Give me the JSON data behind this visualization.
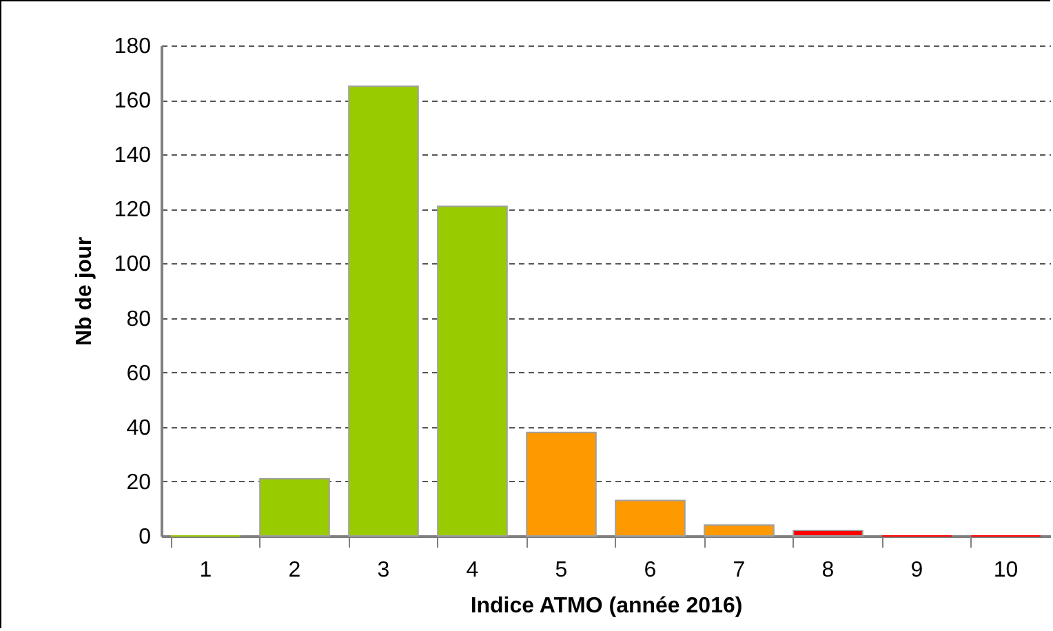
{
  "chart_data": {
    "type": "bar",
    "xlabel": "Indice ATMO (année 2016)",
    "ylabel": "Nb de jour",
    "categories": [
      "1",
      "2",
      "3",
      "4",
      "5",
      "6",
      "7",
      "8",
      "9",
      "10"
    ],
    "values": [
      0,
      21,
      165,
      121,
      38,
      13,
      4,
      2,
      0,
      0
    ],
    "colors": [
      "#99cc00",
      "#99cc00",
      "#99cc00",
      "#99cc00",
      "#ff9900",
      "#ff9900",
      "#ff9900",
      "#ff0000",
      "#ff0000",
      "#ff0000"
    ],
    "ylim": [
      0,
      180
    ],
    "yticks": [
      0,
      20,
      40,
      60,
      80,
      100,
      120,
      140,
      160,
      180
    ],
    "grid": "y"
  }
}
